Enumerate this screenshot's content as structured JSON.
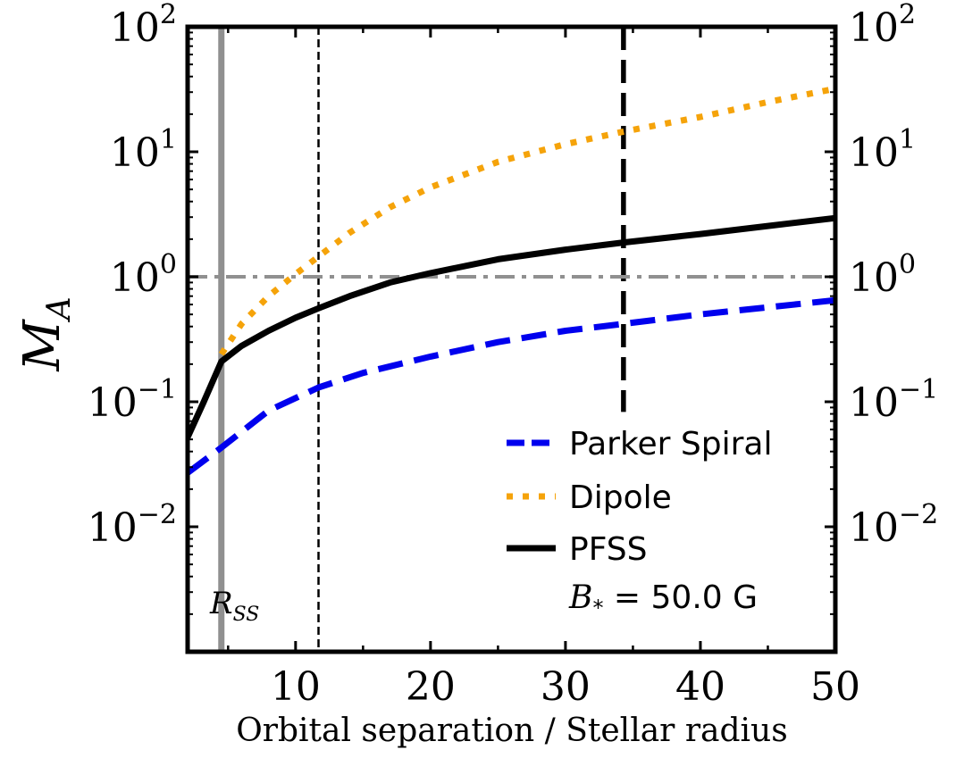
{
  "chart_data": {
    "type": "line",
    "xlabel": "Orbital separation / Stellar radius",
    "ylabel": "M",
    "ylabel_sub": "A",
    "yscale": "log",
    "xlim": [
      2,
      50
    ],
    "ylim_log10": [
      -3,
      2
    ],
    "x_ticks": [
      10,
      20,
      30,
      40,
      50
    ],
    "x_tick_labels": [
      "10",
      "20",
      "30",
      "40",
      "50"
    ],
    "y_ticks": [
      {
        "base": "10",
        "exp": "2",
        "log10": 2
      },
      {
        "base": "10",
        "exp": "1",
        "log10": 1
      },
      {
        "base": "10",
        "exp": "0",
        "log10": 0
      },
      {
        "base": "10",
        "exp": "−1",
        "log10": -1
      },
      {
        "base": "10",
        "exp": "−2",
        "log10": -2
      }
    ],
    "series": [
      {
        "name": "Parker Spiral",
        "color": "#0000ee",
        "style": "dashed",
        "x": [
          2,
          4.5,
          8,
          11.7,
          15,
          20,
          25,
          30,
          34.3,
          40,
          45,
          50
        ],
        "y": [
          0.027,
          0.043,
          0.085,
          0.13,
          0.17,
          0.23,
          0.3,
          0.37,
          0.42,
          0.5,
          0.57,
          0.65
        ]
      },
      {
        "name": "Dipole",
        "color": "#f5a30a",
        "style": "dotted",
        "x": [
          4.5,
          6,
          8,
          10,
          11.7,
          14,
          17,
          20,
          25,
          30,
          34.3,
          40,
          45,
          50
        ],
        "y": [
          0.24,
          0.42,
          0.7,
          1.05,
          1.45,
          2.25,
          3.6,
          5.2,
          8.3,
          11.5,
          14.5,
          19,
          25,
          32
        ]
      },
      {
        "name": "PFSS",
        "color": "#000000",
        "style": "solid",
        "x": [
          2,
          3.2,
          4.5,
          6,
          8,
          10,
          11.7,
          14,
          17,
          20,
          25,
          30,
          34.3,
          40,
          45,
          50
        ],
        "y": [
          0.052,
          0.1,
          0.21,
          0.28,
          0.37,
          0.47,
          0.56,
          0.7,
          0.9,
          1.07,
          1.38,
          1.65,
          1.88,
          2.2,
          2.55,
          2.95
        ]
      }
    ],
    "reference_lines": [
      {
        "orientation": "vertical",
        "x": 4.5,
        "color": "#909090",
        "style": "solid",
        "label": "R",
        "label_sub": "SS"
      },
      {
        "orientation": "vertical",
        "x": 11.7,
        "color": "#000000",
        "style": "thin-dashed"
      },
      {
        "orientation": "vertical",
        "x": 34.3,
        "color": "#000000",
        "style": "thick-dashed",
        "y_range": [
          0.083,
          100
        ]
      },
      {
        "orientation": "horizontal",
        "y": 1,
        "color": "#909090",
        "style": "dashdot"
      }
    ],
    "legend": {
      "position": "lower-right",
      "entries": [
        "Parker Spiral",
        "Dipole",
        "PFSS"
      ]
    },
    "annotation": {
      "prefix": "B",
      "prefix_sub": "*",
      "text": " = 50.0 G"
    }
  }
}
